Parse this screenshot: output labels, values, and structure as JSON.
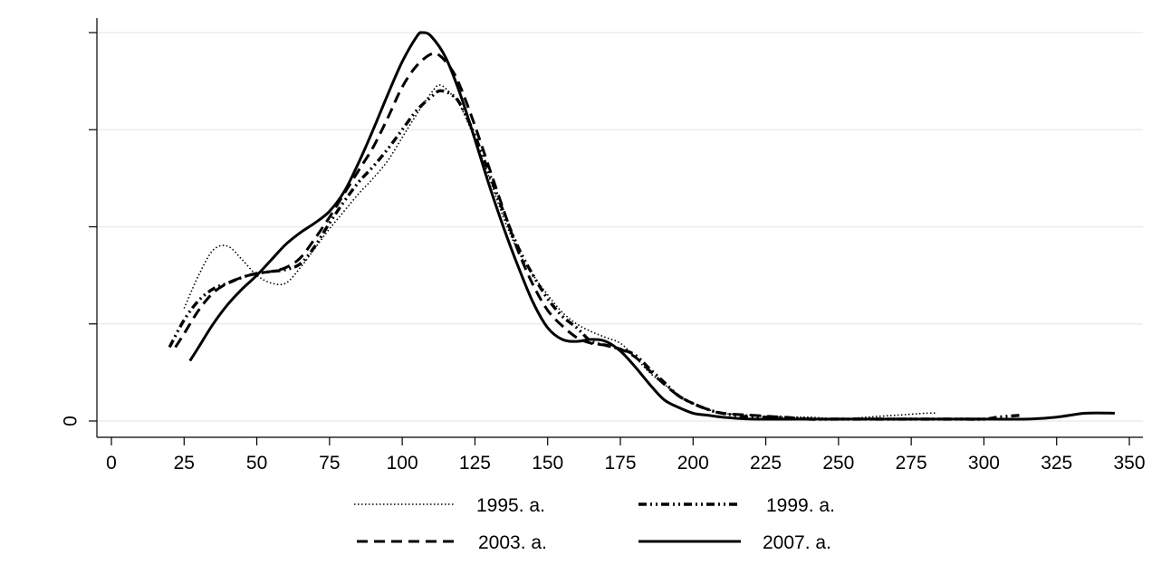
{
  "chart_data": {
    "type": "line",
    "title": "",
    "xlabel": "",
    "ylabel": "",
    "xlim": [
      0,
      350
    ],
    "ylim": [
      0,
      0.02
    ],
    "x_ticks": [
      0,
      25,
      50,
      75,
      100,
      125,
      150,
      175,
      200,
      225,
      250,
      275,
      300,
      325,
      350
    ],
    "x_tick_labels": [
      "0",
      "25",
      "50",
      "75",
      "100",
      "125",
      "150",
      "175",
      "200",
      "225",
      "250",
      "275",
      "300",
      "325",
      "350"
    ],
    "y_ticks": [
      0,
      0.005,
      0.01,
      0.015,
      0.02
    ],
    "y_tick_labels": [
      "0",
      "",
      "",
      "",
      ""
    ],
    "grid": true,
    "legend_position": "bottom",
    "series": [
      {
        "name": "1995. a.",
        "style": "dotted",
        "points": [
          [
            25,
            0.0058
          ],
          [
            30,
            0.0075
          ],
          [
            35,
            0.0088
          ],
          [
            40,
            0.009
          ],
          [
            45,
            0.0083
          ],
          [
            50,
            0.0075
          ],
          [
            55,
            0.0071
          ],
          [
            60,
            0.0071
          ],
          [
            65,
            0.0079
          ],
          [
            70,
            0.0089
          ],
          [
            75,
            0.0099
          ],
          [
            80,
            0.0108
          ],
          [
            85,
            0.0117
          ],
          [
            90,
            0.0125
          ],
          [
            95,
            0.0134
          ],
          [
            100,
            0.0146
          ],
          [
            105,
            0.0158
          ],
          [
            110,
            0.0169
          ],
          [
            113,
            0.0173
          ],
          [
            117,
            0.0168
          ],
          [
            120,
            0.0162
          ],
          [
            125,
            0.0145
          ],
          [
            130,
            0.0125
          ],
          [
            135,
            0.0104
          ],
          [
            140,
            0.0087
          ],
          [
            145,
            0.0075
          ],
          [
            150,
            0.0065
          ],
          [
            155,
            0.0056
          ],
          [
            160,
            0.005
          ],
          [
            165,
            0.0046
          ],
          [
            170,
            0.0043
          ],
          [
            175,
            0.004
          ],
          [
            180,
            0.0033
          ],
          [
            185,
            0.0025
          ],
          [
            190,
            0.0019
          ],
          [
            195,
            0.0013
          ],
          [
            200,
            0.0009
          ],
          [
            205,
            0.0006
          ],
          [
            210,
            0.0004
          ],
          [
            220,
            0.0003
          ],
          [
            230,
            0.0002
          ],
          [
            240,
            0.0002
          ],
          [
            250,
            0.0001
          ],
          [
            260,
            0.0002
          ],
          [
            270,
            0.0003
          ],
          [
            280,
            0.0004
          ],
          [
            284,
            0.0004
          ]
        ]
      },
      {
        "name": "1999. a.",
        "style": "dash-dot",
        "points": [
          [
            20,
            0.0038
          ],
          [
            25,
            0.0052
          ],
          [
            30,
            0.0062
          ],
          [
            35,
            0.0068
          ],
          [
            40,
            0.0071
          ],
          [
            45,
            0.0074
          ],
          [
            50,
            0.0076
          ],
          [
            55,
            0.0077
          ],
          [
            60,
            0.0078
          ],
          [
            65,
            0.0081
          ],
          [
            70,
            0.009
          ],
          [
            75,
            0.0102
          ],
          [
            80,
            0.0113
          ],
          [
            85,
            0.0123
          ],
          [
            90,
            0.0131
          ],
          [
            95,
            0.014
          ],
          [
            100,
            0.015
          ],
          [
            105,
            0.016
          ],
          [
            110,
            0.0167
          ],
          [
            113,
            0.017
          ],
          [
            117,
            0.0168
          ],
          [
            120,
            0.0163
          ],
          [
            125,
            0.0147
          ],
          [
            130,
            0.0127
          ],
          [
            135,
            0.0107
          ],
          [
            140,
            0.0089
          ],
          [
            145,
            0.0075
          ],
          [
            150,
            0.0063
          ],
          [
            155,
            0.0054
          ],
          [
            160,
            0.0048
          ],
          [
            165,
            0.0041
          ],
          [
            170,
            0.0039
          ],
          [
            175,
            0.0037
          ],
          [
            180,
            0.0034
          ],
          [
            185,
            0.0027
          ],
          [
            190,
            0.002
          ],
          [
            195,
            0.0013
          ],
          [
            200,
            0.0009
          ],
          [
            205,
            0.0006
          ],
          [
            210,
            0.0004
          ],
          [
            220,
            0.0002
          ],
          [
            230,
            0.0002
          ],
          [
            240,
            0.0001
          ],
          [
            250,
            0.0001
          ],
          [
            260,
            0.0001
          ],
          [
            270,
            0.0001
          ],
          [
            280,
            0.0001
          ],
          [
            290,
            0.0001
          ],
          [
            300,
            0.0001
          ],
          [
            305,
            0.0002
          ],
          [
            313,
            0.0003
          ]
        ]
      },
      {
        "name": "2003. a.",
        "style": "dashed",
        "points": [
          [
            22,
            0.0038
          ],
          [
            25,
            0.0045
          ],
          [
            30,
            0.0057
          ],
          [
            35,
            0.0066
          ],
          [
            40,
            0.0071
          ],
          [
            45,
            0.0074
          ],
          [
            50,
            0.0076
          ],
          [
            55,
            0.0077
          ],
          [
            60,
            0.0079
          ],
          [
            65,
            0.0084
          ],
          [
            70,
            0.0094
          ],
          [
            75,
            0.0105
          ],
          [
            80,
            0.0117
          ],
          [
            85,
            0.0129
          ],
          [
            90,
            0.0141
          ],
          [
            95,
            0.0156
          ],
          [
            100,
            0.0172
          ],
          [
            105,
            0.0183
          ],
          [
            110,
            0.0189
          ],
          [
            113,
            0.0188
          ],
          [
            117,
            0.0181
          ],
          [
            120,
            0.0172
          ],
          [
            125,
            0.0152
          ],
          [
            130,
            0.013
          ],
          [
            135,
            0.0108
          ],
          [
            140,
            0.0087
          ],
          [
            145,
            0.007
          ],
          [
            150,
            0.0057
          ],
          [
            155,
            0.0049
          ],
          [
            160,
            0.0043
          ],
          [
            165,
            0.004
          ],
          [
            170,
            0.0039
          ],
          [
            175,
            0.0037
          ],
          [
            180,
            0.0033
          ],
          [
            185,
            0.0026
          ],
          [
            190,
            0.0019
          ],
          [
            195,
            0.0013
          ],
          [
            200,
            0.0009
          ],
          [
            205,
            0.0006
          ],
          [
            210,
            0.0004
          ],
          [
            220,
            0.0003
          ],
          [
            230,
            0.0002
          ],
          [
            240,
            0.0001
          ],
          [
            250,
            0.0001
          ],
          [
            260,
            0.0001
          ],
          [
            270,
            0.0001
          ],
          [
            280,
            0.0001
          ],
          [
            290,
            0.0001
          ],
          [
            300,
            0.0001
          ]
        ]
      },
      {
        "name": "2007. a.",
        "style": "solid",
        "points": [
          [
            27,
            0.0031
          ],
          [
            30,
            0.0038
          ],
          [
            35,
            0.005
          ],
          [
            40,
            0.006
          ],
          [
            45,
            0.0068
          ],
          [
            50,
            0.0075
          ],
          [
            55,
            0.0083
          ],
          [
            60,
            0.0091
          ],
          [
            65,
            0.0097
          ],
          [
            70,
            0.0102
          ],
          [
            75,
            0.0108
          ],
          [
            80,
            0.0118
          ],
          [
            85,
            0.0133
          ],
          [
            90,
            0.015
          ],
          [
            95,
            0.0168
          ],
          [
            100,
            0.0185
          ],
          [
            105,
            0.0198
          ],
          [
            107,
            0.02
          ],
          [
            110,
            0.0198
          ],
          [
            115,
            0.0187
          ],
          [
            120,
            0.0168
          ],
          [
            125,
            0.0145
          ],
          [
            130,
            0.0121
          ],
          [
            135,
            0.0099
          ],
          [
            140,
            0.0079
          ],
          [
            145,
            0.0061
          ],
          [
            150,
            0.0048
          ],
          [
            155,
            0.0042
          ],
          [
            160,
            0.0041
          ],
          [
            165,
            0.0042
          ],
          [
            170,
            0.0041
          ],
          [
            175,
            0.0036
          ],
          [
            180,
            0.0028
          ],
          [
            185,
            0.0019
          ],
          [
            190,
            0.0011
          ],
          [
            195,
            0.0007
          ],
          [
            200,
            0.0004
          ],
          [
            205,
            0.0003
          ],
          [
            210,
            0.0002
          ],
          [
            220,
            0.0001
          ],
          [
            240,
            0.0001
          ],
          [
            260,
            0.0001
          ],
          [
            280,
            0.0001
          ],
          [
            300,
            0.0001
          ],
          [
            315,
            0.0001
          ],
          [
            325,
            0.0002
          ],
          [
            335,
            0.0004
          ],
          [
            345,
            0.0004
          ]
        ]
      }
    ]
  }
}
